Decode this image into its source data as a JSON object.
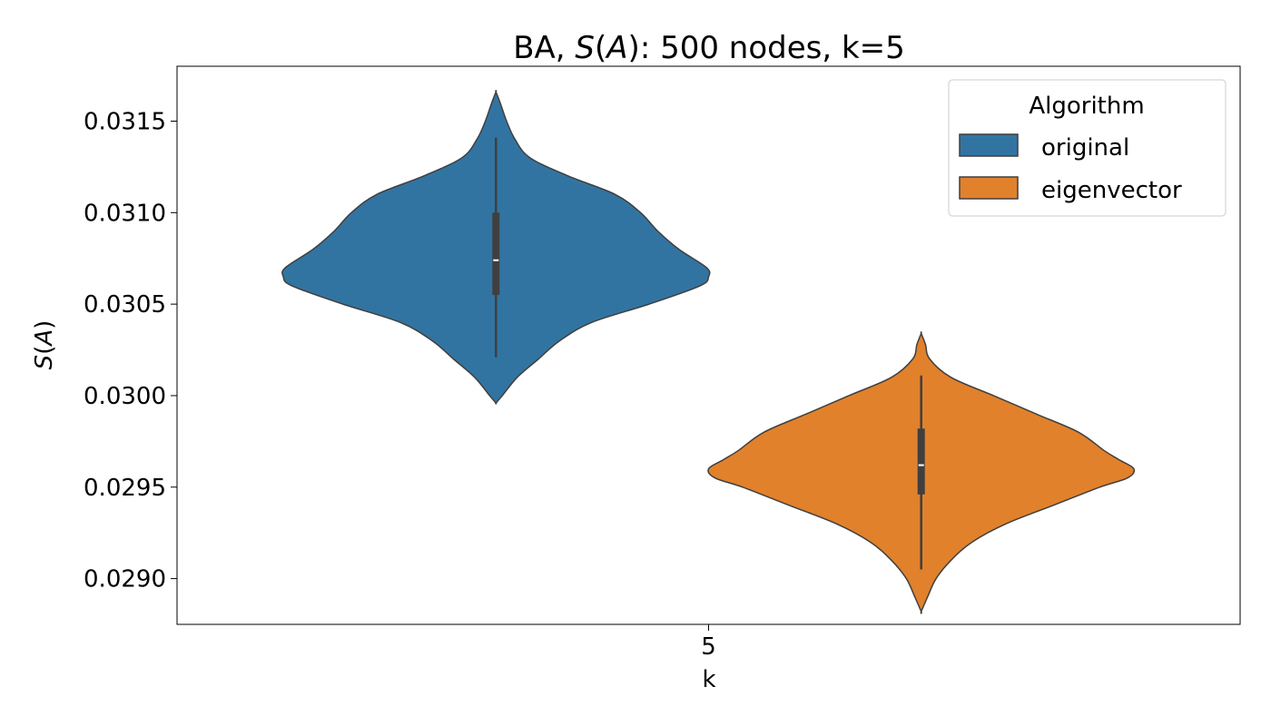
{
  "chart_data": {
    "type": "violin",
    "title_prefix": "BA, ",
    "title_symbol": "S",
    "title_arg": "A",
    "title_suffix": ": 500 nodes, k=5",
    "xlabel": "k",
    "ylabel_symbol": "S",
    "ylabel_arg": "A",
    "categories": [
      "5"
    ],
    "ylim": [
      0.02875,
      0.0318
    ],
    "yticks": [
      0.029,
      0.0295,
      0.03,
      0.0305,
      0.031,
      0.0315
    ],
    "ytick_labels": [
      "0.0290",
      "0.0295",
      "0.0300",
      "0.0305",
      "0.0310",
      "0.0315"
    ],
    "grid": false,
    "legend": {
      "title": "Algorithm",
      "placement": "top-right",
      "entries": [
        "original",
        "eigenvector"
      ]
    },
    "series": [
      {
        "name": "original",
        "color": "#3274a1",
        "kde_max": 0.03166,
        "kde_min": 0.02996,
        "whisker_high": 0.03141,
        "whisker_low": 0.03021,
        "q3": 0.031,
        "q1": 0.03055,
        "median": 0.03074,
        "density_profile": [
          [
            0.03166,
            0.0
          ],
          [
            0.0316,
            0.02
          ],
          [
            0.0315,
            0.05
          ],
          [
            0.0314,
            0.09
          ],
          [
            0.0313,
            0.16
          ],
          [
            0.0312,
            0.34
          ],
          [
            0.0311,
            0.56
          ],
          [
            0.031,
            0.68
          ],
          [
            0.0309,
            0.76
          ],
          [
            0.0308,
            0.86
          ],
          [
            0.0307,
            0.99
          ],
          [
            0.03065,
            1.0
          ],
          [
            0.0306,
            0.96
          ],
          [
            0.0305,
            0.72
          ],
          [
            0.0304,
            0.45
          ],
          [
            0.0303,
            0.3
          ],
          [
            0.0302,
            0.2
          ],
          [
            0.0301,
            0.1
          ],
          [
            0.03,
            0.03
          ],
          [
            0.02996,
            0.0
          ]
        ]
      },
      {
        "name": "eigenvector",
        "color": "#e1812c",
        "kde_max": 0.03034,
        "kde_min": 0.02882,
        "whisker_high": 0.03011,
        "whisker_low": 0.02905,
        "q3": 0.02982,
        "q1": 0.02946,
        "median": 0.02962,
        "density_profile": [
          [
            0.03034,
            0.0
          ],
          [
            0.03028,
            0.02
          ],
          [
            0.0302,
            0.04
          ],
          [
            0.0301,
            0.14
          ],
          [
            0.03,
            0.34
          ],
          [
            0.0299,
            0.54
          ],
          [
            0.0298,
            0.74
          ],
          [
            0.0297,
            0.86
          ],
          [
            0.02965,
            0.93
          ],
          [
            0.0296,
            1.0
          ],
          [
            0.02955,
            0.97
          ],
          [
            0.0295,
            0.84
          ],
          [
            0.0294,
            0.62
          ],
          [
            0.0293,
            0.4
          ],
          [
            0.0292,
            0.24
          ],
          [
            0.0291,
            0.14
          ],
          [
            0.029,
            0.07
          ],
          [
            0.0289,
            0.03
          ],
          [
            0.02882,
            0.0
          ]
        ]
      }
    ]
  }
}
